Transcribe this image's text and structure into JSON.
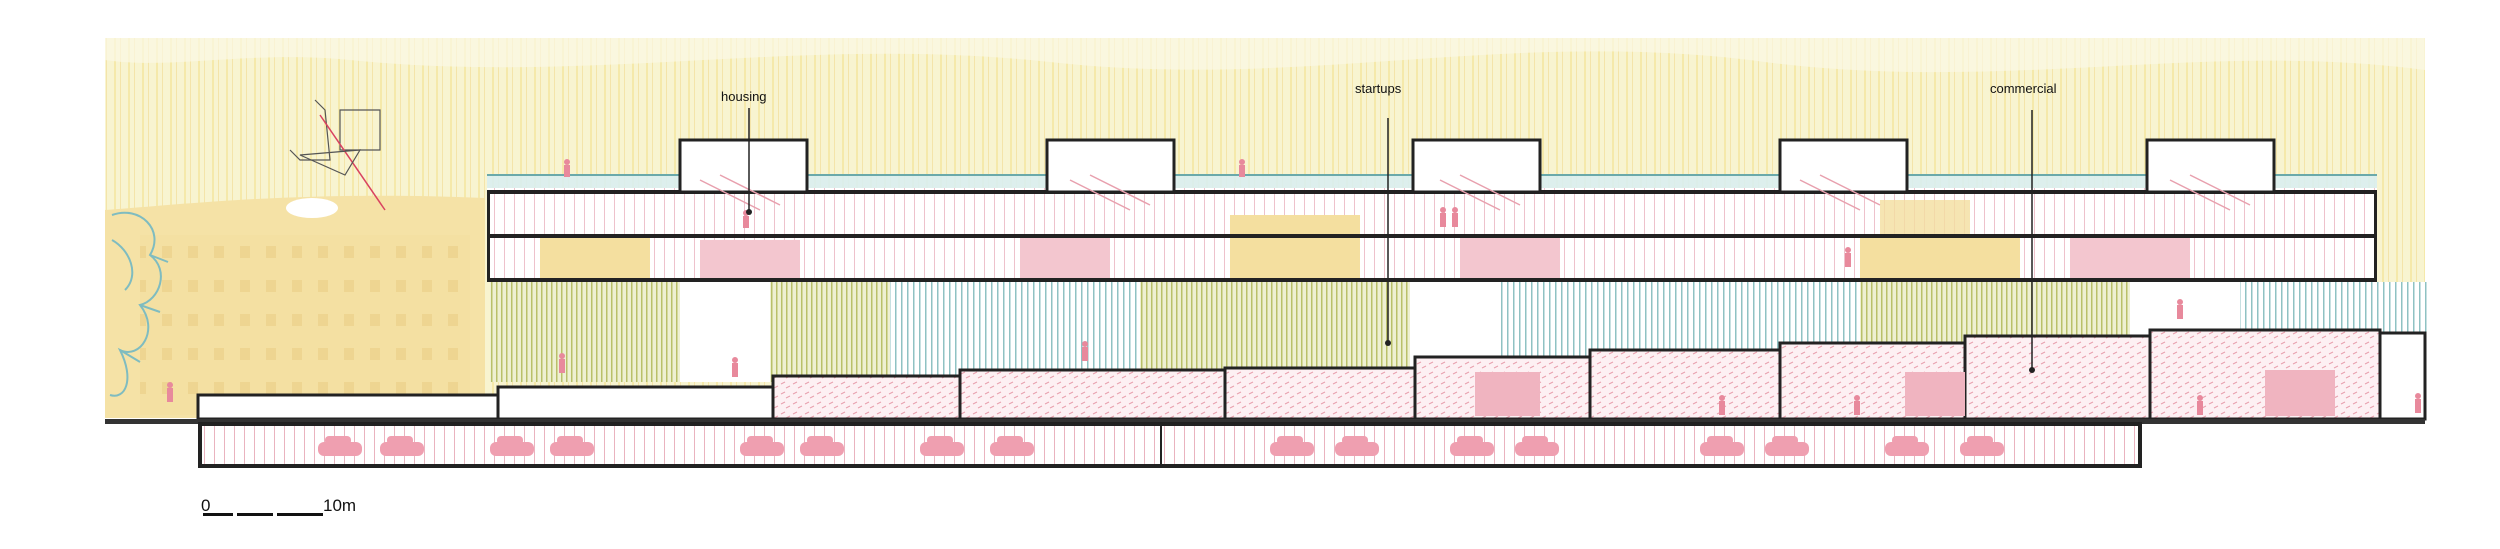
{
  "labels": {
    "housing": "housing",
    "startups": "startups",
    "commercial": "commercial"
  },
  "scale_bar": {
    "start": "0",
    "end": "10m"
  },
  "colors": {
    "sky": "#f7f2c9",
    "yellow_fill": "#f4dfa0",
    "pink": "#e8a0ae",
    "pink_light": "#f6d5dc",
    "teal": "#9cc9c9",
    "olive": "#cbd08e",
    "wall": "#222222"
  }
}
